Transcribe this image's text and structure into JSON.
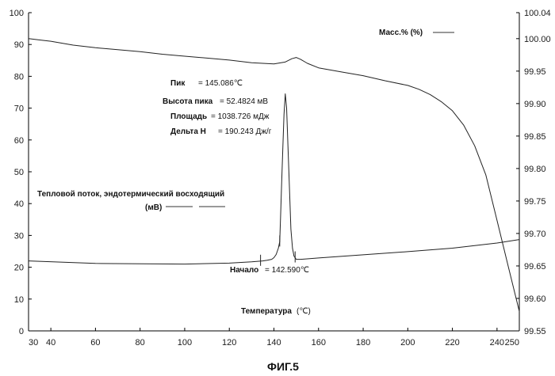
{
  "chart_data": {
    "type": "line",
    "caption": "ФИГ.5",
    "xlabel": "Температура",
    "xunit": "(℃)",
    "xlim": [
      30,
      250
    ],
    "x_ticks": [
      30,
      40,
      60,
      80,
      100,
      120,
      140,
      160,
      180,
      200,
      220,
      240,
      250
    ],
    "ylim_left": [
      0,
      100
    ],
    "y_ticks_left": [
      0,
      10,
      20,
      30,
      40,
      50,
      60,
      70,
      80,
      90,
      100
    ],
    "ylim_right": [
      99.55,
      100.04
    ],
    "y_ticks_right": [
      "99.55",
      "99.60",
      "99.65",
      "99.70",
      "99.75",
      "99.80",
      "99.85",
      "99.90",
      "99.95",
      "100.00",
      "100.04"
    ],
    "series": [
      {
        "name": "Масс.% (%)",
        "axis": "right",
        "x": [
          30,
          35,
          40,
          50,
          60,
          70,
          80,
          90,
          100,
          110,
          120,
          130,
          135,
          140,
          145,
          148,
          150,
          152,
          155,
          160,
          170,
          180,
          190,
          200,
          205,
          210,
          215,
          220,
          225,
          230,
          235,
          240,
          245,
          250
        ],
        "y": [
          100.0,
          99.998,
          99.996,
          99.99,
          99.986,
          99.983,
          99.98,
          99.976,
          99.973,
          99.97,
          99.967,
          99.963,
          99.962,
          99.961,
          99.964,
          99.969,
          99.971,
          99.968,
          99.962,
          99.955,
          99.949,
          99.943,
          99.935,
          99.928,
          99.922,
          99.914,
          99.903,
          99.889,
          99.867,
          99.835,
          99.79,
          99.72,
          99.65,
          99.58
        ]
      },
      {
        "name": "Тепловой поток, эндотермический восходящий (мВ)",
        "axis": "left",
        "x": [
          30,
          60,
          100,
          120,
          130,
          135,
          137,
          139,
          140,
          141,
          142,
          142.6,
          143,
          143.5,
          144,
          144.5,
          145.086,
          145.7,
          146.3,
          147,
          147.6,
          148.3,
          149,
          150,
          152,
          160,
          180,
          200,
          220,
          240,
          250
        ],
        "y": [
          22,
          21.2,
          21,
          21.3,
          21.7,
          22,
          22.2,
          22.5,
          23,
          24,
          26,
          28,
          36,
          47,
          58,
          68,
          74.5,
          70,
          58,
          44,
          32,
          26,
          23.5,
          22.5,
          22.5,
          22.9,
          23.9,
          24.9,
          26,
          27.6,
          28.7
        ]
      }
    ],
    "annotations": {
      "peak_label": "Пик",
      "peak_value": "= 145.086℃",
      "height_label": "Высота пика",
      "height_value": "= 52.4824 мВ",
      "area_label": "Площадь",
      "area_value": "= 1038.726  мДж",
      "delta_label": "Дельта H",
      "delta_value": "= 190.243 Дж/г",
      "onset_label": "Начало",
      "onset_value": "= 142.590℃",
      "mass_legend": "Масс.% (%)",
      "heatflow_legend_line1": "Тепловой поток, эндотермический восходящий",
      "heatflow_legend_line2": "(мВ)"
    },
    "onset_markers_x": [
      134,
      142.6,
      149.5
    ],
    "grid": false
  }
}
